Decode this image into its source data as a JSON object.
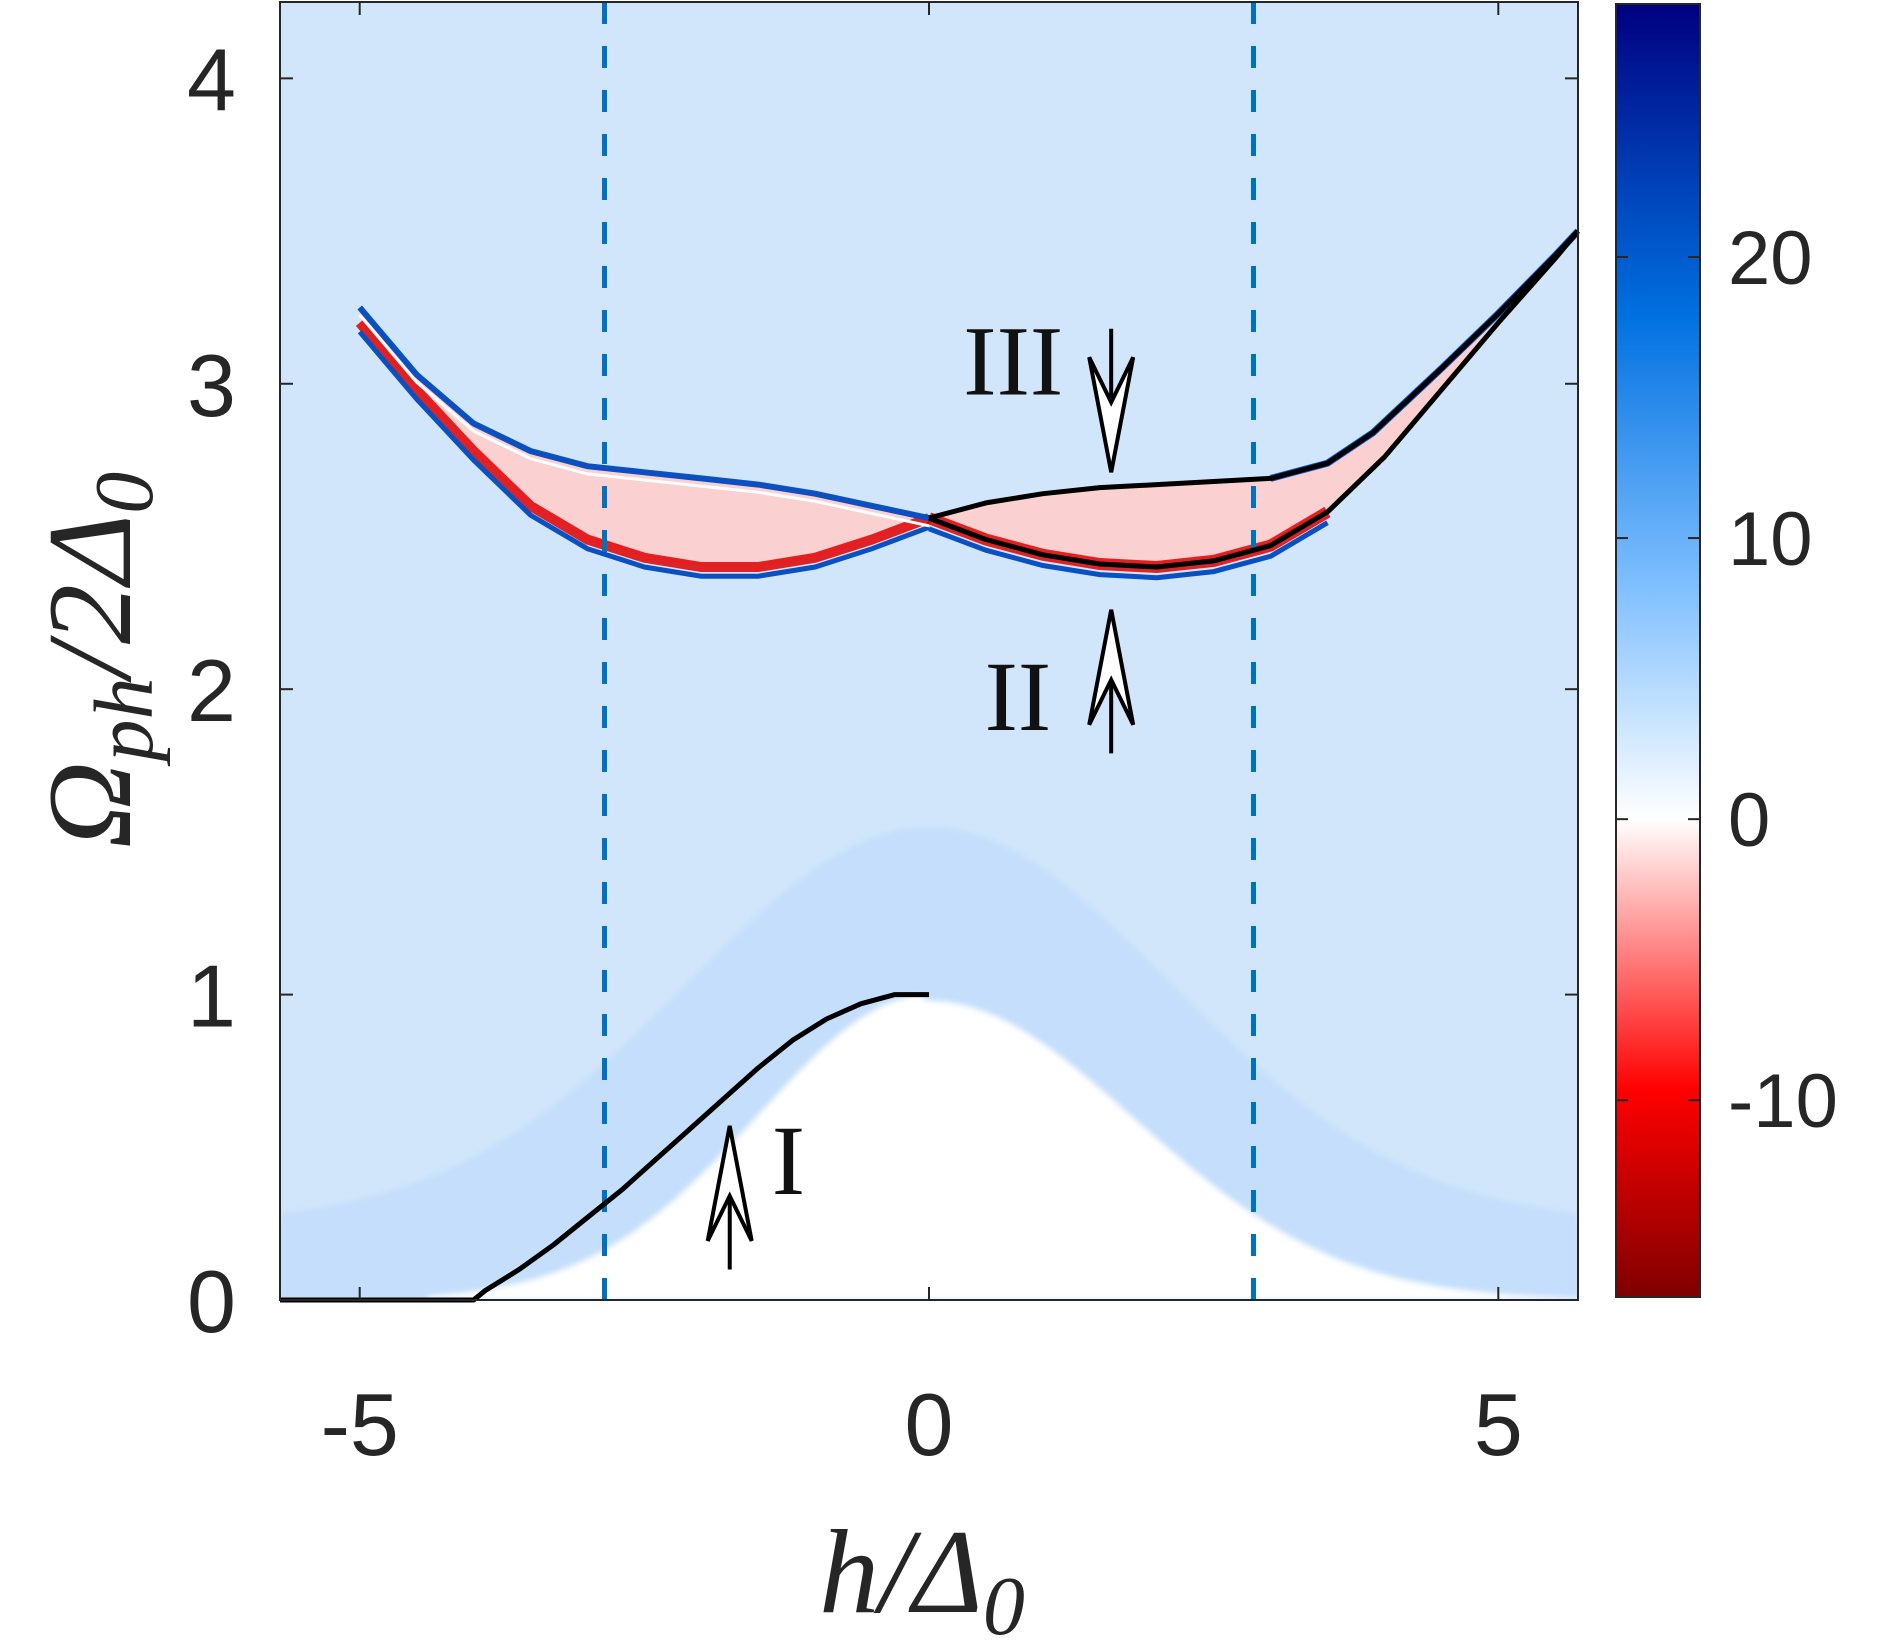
{
  "chart_data": {
    "type": "heatmap",
    "title": "",
    "xlabel": "h/Δ0",
    "ylabel": "Ωph/2Δ0",
    "xlim": [
      -5.7,
      5.7
    ],
    "ylim": [
      0,
      4.25
    ],
    "x_ticks": [
      -5,
      0,
      5
    ],
    "x_tick_labels": [
      "-5",
      "0",
      "5"
    ],
    "y_ticks": [
      0,
      1,
      2,
      3,
      4
    ],
    "y_tick_labels": [
      "0",
      "1",
      "2",
      "3",
      "4"
    ],
    "colorbar": {
      "range": [
        -17,
        29
      ],
      "ticks": [
        -10,
        0,
        10,
        20
      ],
      "tick_labels": [
        "-10",
        "0",
        "10",
        "20"
      ],
      "colormap": [
        "#7f0000",
        "#ff0000",
        "#ffffff",
        "#7fbfff",
        "#0070e0",
        "#000080"
      ],
      "colormap_positions": [
        0,
        0.16,
        0.37,
        0.55,
        0.76,
        1
      ]
    },
    "colors": {
      "background": "#d2e6fb",
      "band_light": "#c0dcfb",
      "zero_region": "#ffffff",
      "negative": "#e00000",
      "positive": "#0a50c0",
      "dashed_lines": "#0072bd",
      "curves": "#000000"
    },
    "vertical_dashed_lines": [
      -2.85,
      2.85
    ],
    "curves": [
      {
        "id": "I",
        "points": [
          [
            -5.7,
            0
          ],
          [
            -4.0,
            0
          ],
          [
            -3.9,
            0.03
          ],
          [
            -3.6,
            0.1
          ],
          [
            -3.3,
            0.18
          ],
          [
            -3.0,
            0.27
          ],
          [
            -2.7,
            0.36
          ],
          [
            -2.4,
            0.46
          ],
          [
            -2.1,
            0.56
          ],
          [
            -1.8,
            0.66
          ],
          [
            -1.5,
            0.76
          ],
          [
            -1.2,
            0.85
          ],
          [
            -0.9,
            0.92
          ],
          [
            -0.6,
            0.97
          ],
          [
            -0.3,
            1.0
          ],
          [
            0,
            1.0
          ]
        ]
      },
      {
        "id": "II",
        "points": [
          [
            0,
            2.56
          ],
          [
            0.5,
            2.49
          ],
          [
            1.0,
            2.44
          ],
          [
            1.5,
            2.41
          ],
          [
            2.0,
            2.4
          ],
          [
            2.5,
            2.42
          ],
          [
            3.0,
            2.47
          ],
          [
            3.5,
            2.58
          ],
          [
            4.0,
            2.76
          ],
          [
            4.5,
            2.98
          ],
          [
            5.0,
            3.2
          ],
          [
            5.5,
            3.41
          ],
          [
            5.7,
            3.5
          ]
        ]
      },
      {
        "id": "III",
        "points": [
          [
            0,
            2.56
          ],
          [
            0.5,
            2.61
          ],
          [
            1.0,
            2.64
          ],
          [
            1.5,
            2.66
          ],
          [
            2.0,
            2.67
          ],
          [
            2.5,
            2.68
          ],
          [
            3.0,
            2.69
          ],
          [
            3.5,
            2.74
          ],
          [
            3.9,
            2.84
          ],
          [
            4.5,
            3.05
          ],
          [
            5.0,
            3.23
          ],
          [
            5.5,
            3.42
          ],
          [
            5.7,
            3.5
          ]
        ]
      }
    ],
    "mirror_branch": {
      "upper": [
        [
          -5.0,
          3.25
        ],
        [
          -4.5,
          3.03
        ],
        [
          -4.0,
          2.87
        ],
        [
          -3.5,
          2.78
        ],
        [
          -3.0,
          2.73
        ],
        [
          -2.5,
          2.71
        ],
        [
          -2.0,
          2.69
        ],
        [
          -1.5,
          2.67
        ],
        [
          -1.0,
          2.64
        ],
        [
          -0.5,
          2.6
        ],
        [
          0,
          2.56
        ]
      ],
      "lower": [
        [
          -5.0,
          3.2
        ],
        [
          -4.5,
          2.98
        ],
        [
          -4.0,
          2.78
        ],
        [
          -3.5,
          2.6
        ],
        [
          -3.0,
          2.49
        ],
        [
          -2.5,
          2.43
        ],
        [
          -2.0,
          2.4
        ],
        [
          -1.5,
          2.4
        ],
        [
          -1.0,
          2.43
        ],
        [
          -0.5,
          2.49
        ],
        [
          0,
          2.56
        ]
      ]
    },
    "annotations": [
      {
        "text": "I",
        "arrow_tip": [
          -1.75,
          0.57
        ],
        "arrow_tail": [
          -1.75,
          0.1
        ],
        "direction": "up"
      },
      {
        "text": "II",
        "arrow_tip": [
          1.6,
          2.26
        ],
        "arrow_tail": [
          1.6,
          1.79
        ],
        "direction": "up"
      },
      {
        "text": "III",
        "arrow_tip": [
          1.6,
          2.71
        ],
        "arrow_tail": [
          1.6,
          3.18
        ],
        "direction": "down"
      }
    ]
  }
}
